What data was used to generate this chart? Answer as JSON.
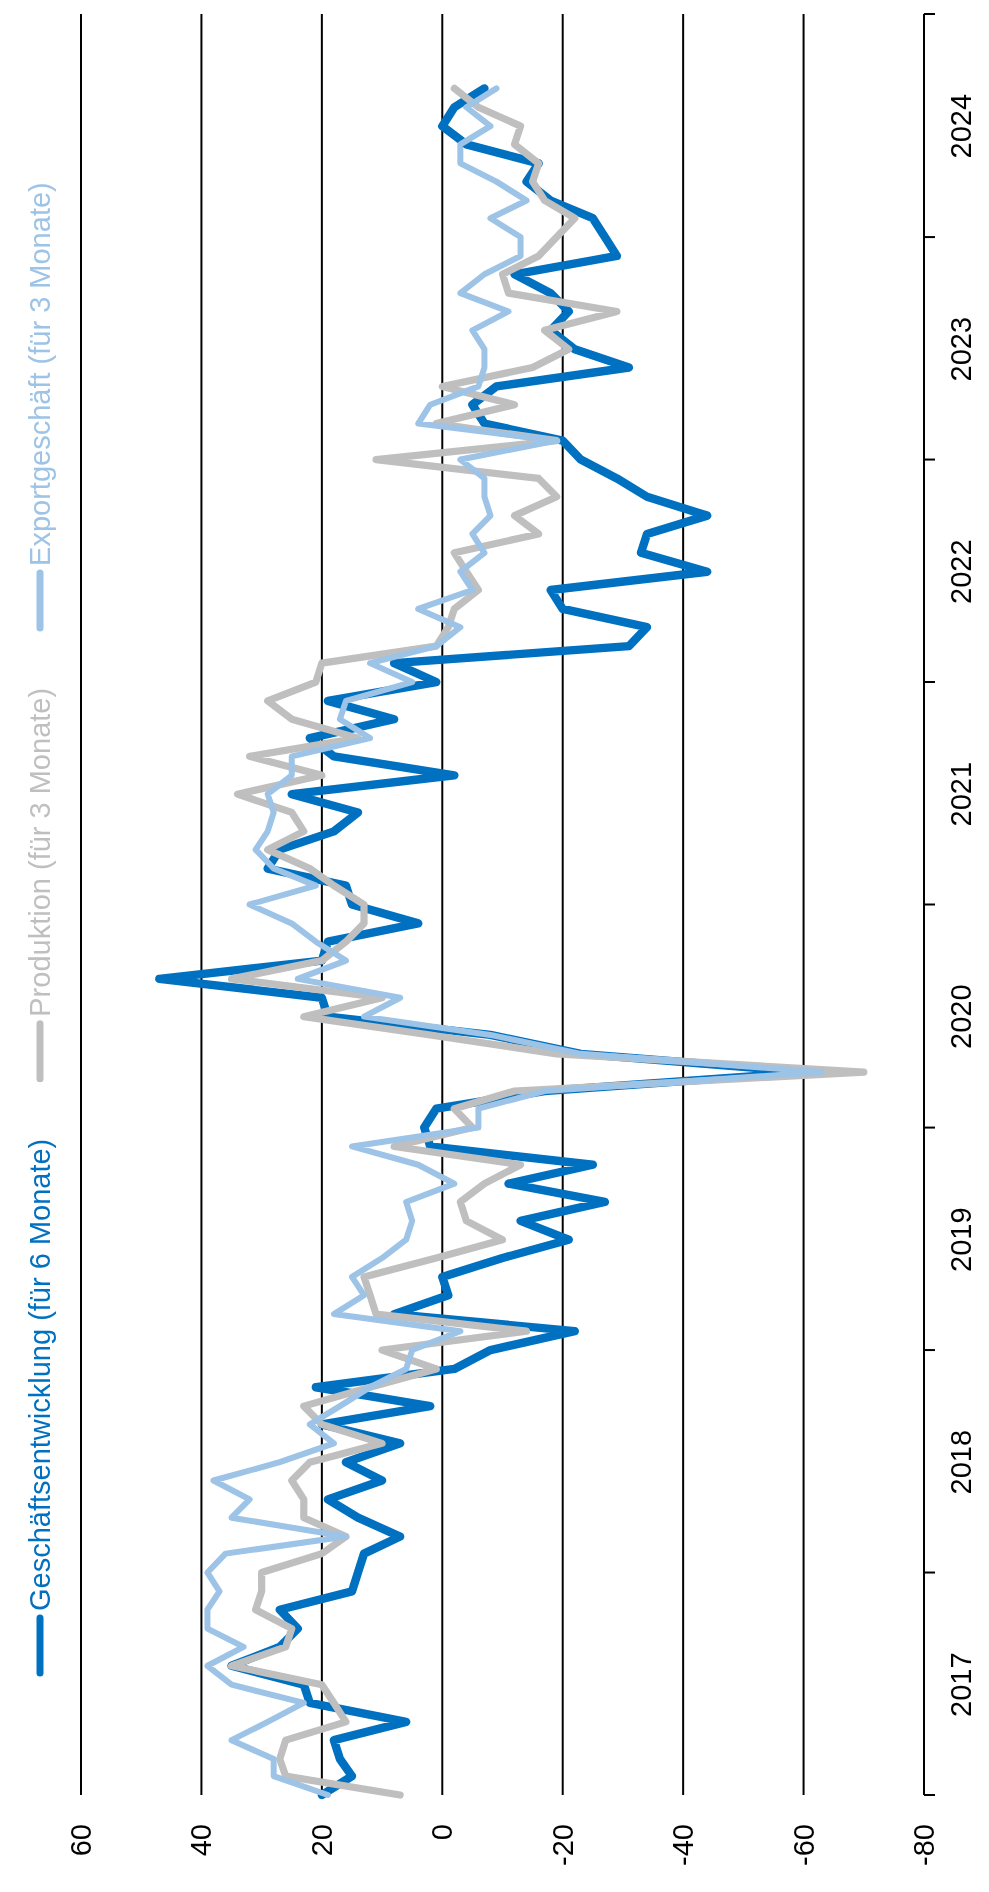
{
  "chart_data": {
    "type": "line",
    "orientation": "horizontal",
    "legend": "left",
    "grid": "x",
    "line_style": "solid",
    "ylim": [
      "2017-01",
      "2025-01"
    ],
    "xlim": [
      60,
      -80
    ],
    "xticks": [
      60,
      40,
      20,
      0,
      -20,
      -40,
      -60,
      -80
    ],
    "yticks": [
      {
        "value": "2017-01",
        "label": null
      },
      {
        "value": "2017-07",
        "label": "2017"
      },
      {
        "value": "2018-01",
        "label": null
      },
      {
        "value": "2018-07",
        "label": "2018"
      },
      {
        "value": "2019-01",
        "label": null
      },
      {
        "value": "2019-07",
        "label": "2019"
      },
      {
        "value": "2020-01",
        "label": null
      },
      {
        "value": "2020-07",
        "label": "2020"
      },
      {
        "value": "2021-01",
        "label": null
      },
      {
        "value": "2021-07",
        "label": "2021"
      },
      {
        "value": "2022-01",
        "label": null
      },
      {
        "value": "2022-07",
        "label": "2022"
      },
      {
        "value": "2023-01",
        "label": null
      },
      {
        "value": "2023-07",
        "label": "2023"
      },
      {
        "value": "2024-01",
        "label": null
      },
      {
        "value": "2024-07",
        "label": "2024"
      },
      {
        "value": "2025-01",
        "label": null
      }
    ],
    "x": [
      "2017-01",
      "2017-02",
      "2017-03",
      "2017-04",
      "2017-05",
      "2017-06",
      "2017-07",
      "2017-08",
      "2017-09",
      "2017-10",
      "2017-11",
      "2017-12",
      "2018-01",
      "2018-02",
      "2018-03",
      "2018-04",
      "2018-05",
      "2018-06",
      "2018-07",
      "2018-08",
      "2018-09",
      "2018-10",
      "2018-11",
      "2018-12",
      "2019-01",
      "2019-02",
      "2019-03",
      "2019-04",
      "2019-05",
      "2019-06",
      "2019-07",
      "2019-08",
      "2019-09",
      "2019-10",
      "2019-11",
      "2019-12",
      "2020-01",
      "2020-02",
      "2020-03",
      "2020-04",
      "2020-05",
      "2020-06",
      "2020-07",
      "2020-08",
      "2020-09",
      "2020-10",
      "2020-11",
      "2020-12",
      "2021-01",
      "2021-02",
      "2021-03",
      "2021-04",
      "2021-05",
      "2021-06",
      "2021-07",
      "2021-08",
      "2021-09",
      "2021-10",
      "2021-11",
      "2021-12",
      "2022-01",
      "2022-02",
      "2022-03",
      "2022-04",
      "2022-05",
      "2022-06",
      "2022-07",
      "2022-08",
      "2022-09",
      "2022-10",
      "2022-11",
      "2022-12",
      "2023-01",
      "2023-02",
      "2023-03",
      "2023-04",
      "2023-05",
      "2023-06",
      "2023-07",
      "2023-08",
      "2023-09",
      "2023-10",
      "2023-11",
      "2023-12",
      "2024-01",
      "2024-02",
      "2024-03",
      "2024-04",
      "2024-05",
      "2024-06",
      "2024-07",
      "2024-08",
      "2024-09"
    ],
    "series": [
      {
        "name": "Geschäftsentwicklung (für 6 Monate)",
        "color": "#0070c0",
        "values": [
          20,
          15,
          17,
          18,
          6,
          22,
          23,
          35,
          27,
          24,
          27,
          15,
          14,
          13,
          7,
          14,
          19,
          10,
          16,
          7,
          20,
          2,
          21,
          -2,
          -8,
          -22,
          8,
          -1,
          0,
          -10,
          -21,
          -13,
          -27,
          -11,
          -25,
          2,
          3,
          1,
          -17,
          -61,
          -23,
          -8,
          19,
          20,
          47,
          20,
          19,
          4,
          15,
          16,
          29,
          27,
          18,
          14,
          25,
          -2,
          18,
          22,
          8,
          19,
          1,
          8,
          -31,
          -34,
          -20,
          -18,
          -44,
          -33,
          -34,
          -44,
          -34,
          -29,
          -23,
          -20,
          -7,
          -5,
          -9,
          -31,
          -22,
          -18,
          -21,
          -18,
          -12,
          -29,
          -27,
          -25,
          -18,
          -14,
          -16,
          -4,
          0,
          -2,
          -7
        ]
      },
      {
        "name": "Produktion (für 3 Monate)",
        "color": "#bfbfbf",
        "values": [
          7,
          26,
          27,
          26,
          16,
          18,
          20,
          35,
          26,
          25,
          31,
          30,
          30,
          20,
          16,
          23,
          23,
          25,
          22,
          10,
          20,
          23,
          12,
          1,
          10,
          -14,
          11,
          12,
          13,
          1,
          -10,
          -4,
          -3,
          -7,
          -13,
          8,
          -5,
          -2,
          -12,
          -70,
          -19,
          2,
          23,
          10,
          35,
          20,
          16,
          13,
          13,
          18,
          22,
          29,
          23,
          25,
          34,
          20,
          32,
          14,
          25,
          29,
          21,
          20,
          1,
          -1,
          -2,
          -6,
          -4,
          -2,
          -16,
          -12,
          -19,
          -16,
          11,
          -19,
          1,
          -12,
          0,
          -15,
          -21,
          -17,
          -29,
          -11,
          -10,
          -16,
          -19,
          -22,
          -17,
          -15,
          -16,
          -12,
          -13,
          -6,
          -2
        ]
      },
      {
        "name": "Exportgeschäft (für 3 Monate)",
        "color": "#9dc3e6",
        "values": [
          19,
          28,
          28,
          35,
          29,
          23,
          35,
          39,
          33,
          39,
          39,
          37,
          39,
          36,
          16,
          35,
          32,
          38,
          27,
          18,
          22,
          17,
          12,
          6,
          5,
          -3,
          18,
          13,
          15,
          10,
          6,
          5,
          6,
          -2,
          4,
          15,
          -6,
          -6,
          -17,
          -63,
          -23,
          -8,
          13,
          7,
          24,
          16,
          21,
          25,
          32,
          21,
          28,
          31,
          29,
          28,
          29,
          25,
          25,
          12,
          17,
          16,
          5,
          12,
          1,
          -3,
          4,
          -5,
          -3,
          -7,
          -5,
          -8,
          -7,
          -7,
          -3,
          -19,
          4,
          2,
          -6,
          -7,
          -7,
          -5,
          -11,
          -3,
          -7,
          -13,
          -13,
          -8,
          -14,
          -9,
          -3,
          -3,
          -8,
          -4,
          -9
        ]
      }
    ]
  }
}
